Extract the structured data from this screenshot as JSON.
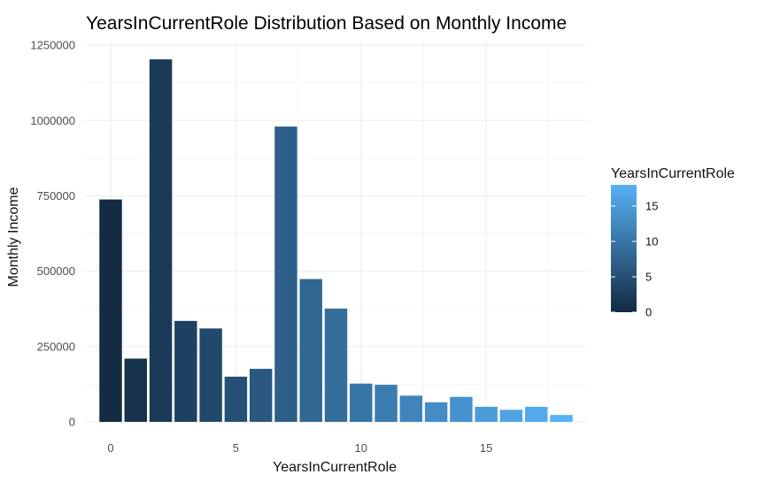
{
  "chart_data": {
    "type": "bar",
    "title": "YearsInCurrentRole Distribution Based on Monthly Income",
    "xlabel": "YearsInCurrentRole",
    "ylabel": "Monthly Income",
    "x": [
      0,
      1,
      2,
      3,
      4,
      5,
      6,
      7,
      8,
      9,
      10,
      11,
      12,
      13,
      14,
      15,
      16,
      17,
      18
    ],
    "values": [
      738000,
      210000,
      1203000,
      335000,
      310000,
      150000,
      176000,
      980000,
      474000,
      376000,
      127000,
      123000,
      87000,
      65000,
      83000,
      50000,
      40000,
      50000,
      23000
    ],
    "xlim": [
      -0.99,
      18.99
    ],
    "ylim": [
      0,
      1265000
    ],
    "x_ticks": [
      0,
      5,
      10,
      15
    ],
    "x_tick_labels": [
      "0",
      "5",
      "10",
      "15"
    ],
    "y_ticks": [
      0,
      250000,
      500000,
      750000,
      1000000,
      1250000
    ],
    "y_tick_labels": [
      "0",
      "250000",
      "500000",
      "750000",
      "1000000",
      "1250000"
    ],
    "grid": true,
    "legend": {
      "title": "YearsInCurrentRole",
      "placement": "right",
      "type": "gradient",
      "range": [
        0,
        18
      ],
      "ticks": [
        0,
        5,
        10,
        15
      ],
      "tick_labels": [
        "0",
        "5",
        "10",
        "15"
      ],
      "color_low": "#132B43",
      "color_high": "#56B1F7"
    }
  }
}
